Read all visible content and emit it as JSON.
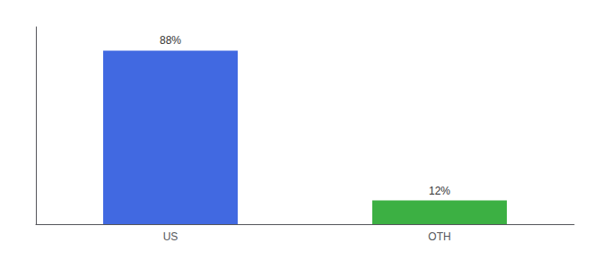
{
  "chart_data": {
    "type": "bar",
    "categories": [
      "US",
      "OTH"
    ],
    "values": [
      88,
      12
    ],
    "value_labels": [
      "88%",
      "12%"
    ],
    "colors": [
      "#4169E1",
      "#3CB043"
    ],
    "ylim": [
      0,
      100
    ],
    "grid": false,
    "tick_labels": "x",
    "data_labels": true
  }
}
